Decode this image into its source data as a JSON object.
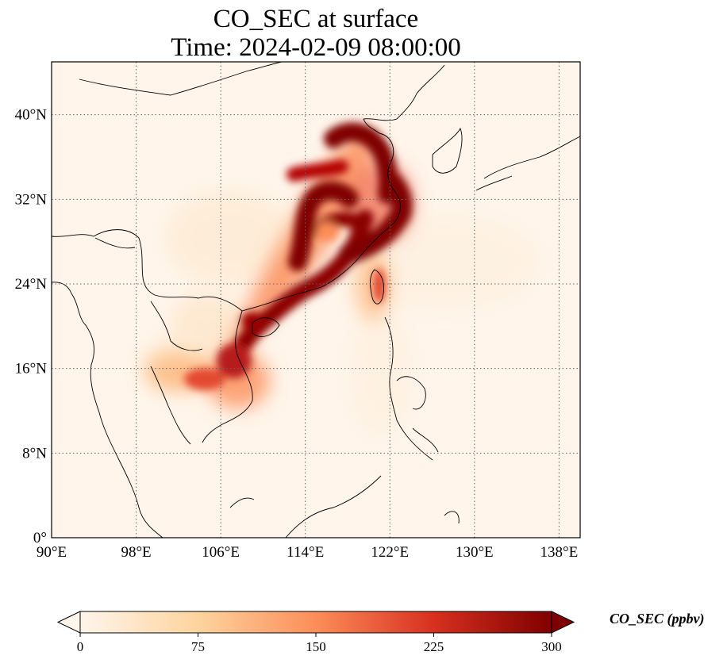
{
  "title": {
    "line1": "CO_SEC at surface",
    "line2": "Time: 2024-02-09 08:00:00"
  },
  "map": {
    "lon_range": [
      90,
      140
    ],
    "lat_range": [
      0,
      45
    ],
    "x_ticks": [
      {
        "value": 90,
        "label": "90°E"
      },
      {
        "value": 98,
        "label": "98°E"
      },
      {
        "value": 106,
        "label": "106°E"
      },
      {
        "value": 114,
        "label": "114°E"
      },
      {
        "value": 122,
        "label": "122°E"
      },
      {
        "value": 130,
        "label": "130°E"
      },
      {
        "value": 138,
        "label": "138°E"
      }
    ],
    "y_ticks": [
      {
        "value": 0,
        "label": "0°"
      },
      {
        "value": 8,
        "label": "8°N"
      },
      {
        "value": 16,
        "label": "16°N"
      },
      {
        "value": 24,
        "label": "24°N"
      },
      {
        "value": 32,
        "label": "32°N"
      },
      {
        "value": 40,
        "label": "40°N"
      }
    ],
    "gridlines": "dotted",
    "background_color": "#fff5eb"
  },
  "colorbar": {
    "label": "CO_SEC (ppbv)",
    "min": 0,
    "max": 300,
    "extend": "both",
    "ticks": [
      {
        "value": 0,
        "label": "0"
      },
      {
        "value": 75,
        "label": "75"
      },
      {
        "value": 150,
        "label": "150"
      },
      {
        "value": 225,
        "label": "225"
      },
      {
        "value": 300,
        "label": "300"
      }
    ],
    "colormap": "OrRd",
    "colors": [
      "#fff5eb",
      "#fdd49e",
      "#fc8d59",
      "#d7301f",
      "#7f0000"
    ]
  },
  "chart_data": {
    "type": "heatmap",
    "variable": "CO_SEC",
    "units": "ppbv",
    "plumes": [
      {
        "lon": 116.5,
        "lat": 38.3,
        "value": 300
      },
      {
        "lon": 119.0,
        "lat": 36.0,
        "value": 300
      },
      {
        "lon": 118.5,
        "lat": 33.5,
        "value": 290
      },
      {
        "lon": 113.5,
        "lat": 31.0,
        "value": 300
      },
      {
        "lon": 116.8,
        "lat": 30.5,
        "value": 280
      },
      {
        "lon": 121.0,
        "lat": 30.0,
        "value": 300
      },
      {
        "lon": 113.5,
        "lat": 27.5,
        "value": 300
      },
      {
        "lon": 119.5,
        "lat": 27.0,
        "value": 240
      },
      {
        "lon": 114.0,
        "lat": 23.0,
        "value": 300
      },
      {
        "lon": 117.5,
        "lat": 24.5,
        "value": 250
      },
      {
        "lon": 110.5,
        "lat": 20.5,
        "value": 300
      },
      {
        "lon": 107.5,
        "lat": 17.5,
        "value": 280
      },
      {
        "lon": 106.0,
        "lat": 14.5,
        "value": 230
      },
      {
        "lon": 102.5,
        "lat": 15.0,
        "value": 110
      },
      {
        "lon": 120.5,
        "lat": 22.5,
        "value": 170
      }
    ]
  }
}
